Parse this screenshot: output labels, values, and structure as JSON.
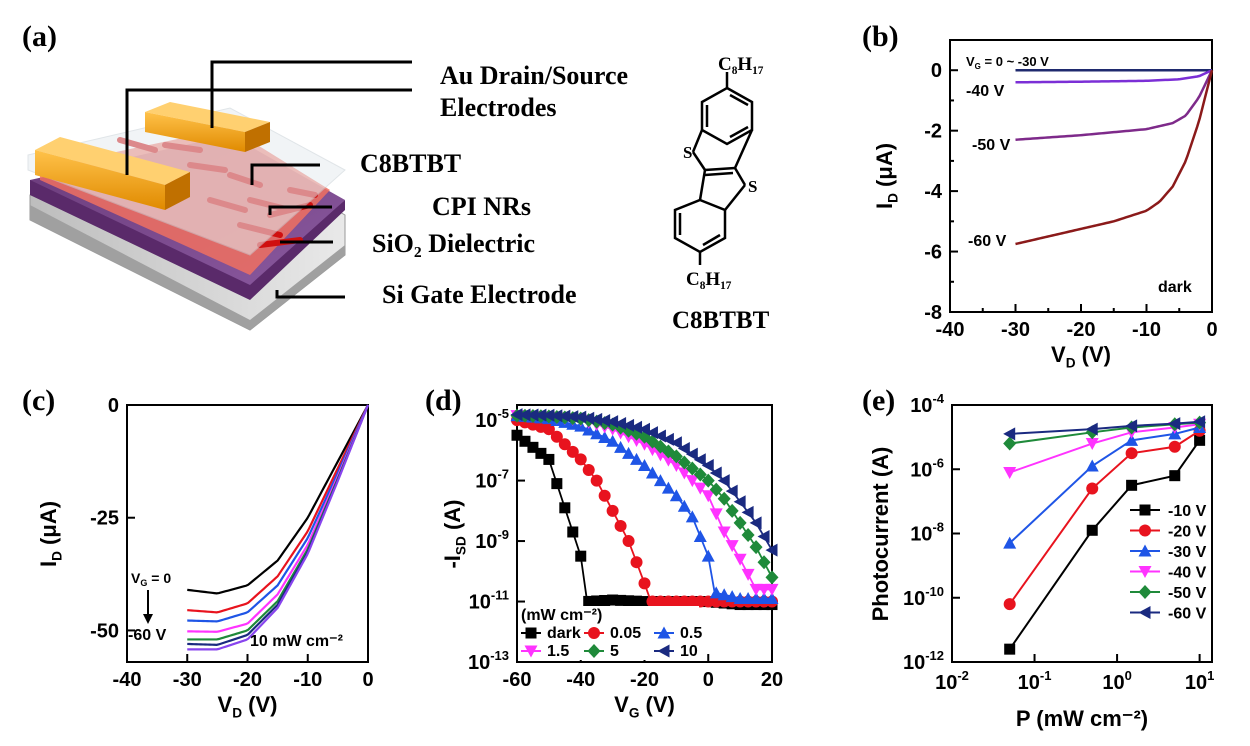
{
  "panels": {
    "a": {
      "letter": "(a)",
      "labels": [
        "Au Drain/Source",
        "Electrodes",
        "C8BTBT",
        "CPI NRs",
        "SiO₂ Dielectric",
        "Si Gate Electrode"
      ],
      "molecule": {
        "name": "C8BTBT",
        "top_sub": "C₈H₁₇",
        "bottom_sub": "C₈H₁₇",
        "s1": "S",
        "s2": "S"
      }
    },
    "b": {
      "letter": "(b)"
    },
    "c": {
      "letter": "(c)"
    },
    "d": {
      "letter": "(d)"
    },
    "e": {
      "letter": "(e)"
    }
  },
  "chart_data": [
    {
      "id": "b",
      "type": "line",
      "xlabel": "V_D (V)",
      "ylabel": "I_D (μA)",
      "xlim": [
        -40,
        0
      ],
      "ylim": [
        -8,
        1
      ],
      "xticks": [
        -40,
        -30,
        -20,
        -10,
        0
      ],
      "yticks": [
        0,
        -2,
        -4,
        -6,
        -8
      ],
      "annotations": [
        "V_G = 0 ~ -30 V",
        "-40 V",
        "-50 V",
        "-60 V",
        "dark"
      ],
      "series": [
        {
          "name": "0 ~ -30 V",
          "color": "#1f2a6e",
          "x": [
            -30,
            -20,
            -10,
            -5,
            0
          ],
          "y": [
            0,
            0,
            0,
            0,
            0
          ]
        },
        {
          "name": "-40 V",
          "color": "#7b2fd6",
          "x": [
            -30,
            -20,
            -10,
            -5,
            -2,
            0
          ],
          "y": [
            -0.4,
            -0.38,
            -0.35,
            -0.3,
            -0.2,
            0
          ]
        },
        {
          "name": "-50 V",
          "color": "#7e2a8a",
          "x": [
            -30,
            -20,
            -10,
            -6,
            -4,
            -2,
            0
          ],
          "y": [
            -2.3,
            -2.15,
            -1.95,
            -1.75,
            -1.5,
            -0.9,
            0
          ]
        },
        {
          "name": "-60 V",
          "color": "#8b1a1a",
          "x": [
            -30,
            -25,
            -20,
            -15,
            -10,
            -8,
            -6,
            -4,
            -2,
            0
          ],
          "y": [
            -5.75,
            -5.5,
            -5.25,
            -5.0,
            -4.65,
            -4.35,
            -3.85,
            -3.0,
            -1.7,
            0
          ]
        }
      ]
    },
    {
      "id": "c",
      "type": "line",
      "xlabel": "V_D (V)",
      "ylabel": "I_D (μA)",
      "xlim": [
        -40,
        0
      ],
      "ylim": [
        -57,
        0
      ],
      "xticks": [
        -40,
        -30,
        -20,
        -10,
        0
      ],
      "yticks": [
        0,
        -25,
        -50
      ],
      "annotations": [
        "V_G = 0",
        "-60 V",
        "10 mW cm⁻²"
      ],
      "series": [
        {
          "name": "0 V",
          "color": "#000000",
          "x": [
            -30,
            -25,
            -20,
            -15,
            -10,
            -5,
            0
          ],
          "y": [
            -41,
            -41.8,
            -40,
            -34.5,
            -25,
            -12.5,
            0
          ]
        },
        {
          "name": "-10 V",
          "color": "#e8131e",
          "x": [
            -30,
            -25,
            -20,
            -15,
            -10,
            -5,
            0
          ],
          "y": [
            -45.5,
            -46,
            -44,
            -38,
            -28,
            -14,
            0
          ]
        },
        {
          "name": "-20 V",
          "color": "#1f55e6",
          "x": [
            -30,
            -25,
            -20,
            -15,
            -10,
            -5,
            0
          ],
          "y": [
            -47.8,
            -48,
            -46,
            -40,
            -29.5,
            -15,
            0
          ]
        },
        {
          "name": "-30 V",
          "color": "#ff33ff",
          "x": [
            -30,
            -25,
            -20,
            -15,
            -10,
            -5,
            0
          ],
          "y": [
            -50.2,
            -50.3,
            -48.5,
            -42,
            -31,
            -15.8,
            0
          ]
        },
        {
          "name": "-40 V",
          "color": "#1f8a3a",
          "x": [
            -30,
            -25,
            -20,
            -15,
            -10,
            -5,
            0
          ],
          "y": [
            -52,
            -52,
            -50,
            -43.5,
            -32,
            -16.3,
            0
          ]
        },
        {
          "name": "-50 V",
          "color": "#1a2a80",
          "x": [
            -30,
            -25,
            -20,
            -15,
            -10,
            -5,
            0
          ],
          "y": [
            -53,
            -53.2,
            -51,
            -44.3,
            -32.6,
            -16.6,
            0
          ]
        },
        {
          "name": "-60 V",
          "color": "#8844ee",
          "x": [
            -30,
            -25,
            -20,
            -15,
            -10,
            -5,
            0
          ],
          "y": [
            -54.2,
            -54.2,
            -52,
            -45,
            -33,
            -16.8,
            0
          ]
        }
      ]
    },
    {
      "id": "d",
      "type": "line",
      "xlabel": "V_G (V)",
      "ylabel": "-I_SD (A)",
      "xlim": [
        -60,
        20
      ],
      "ylim_log10": [
        -13,
        -4.5
      ],
      "xticks": [
        -60,
        -40,
        -20,
        0,
        20
      ],
      "yticks_log10": [
        -5,
        -7,
        -9,
        -11,
        -13
      ],
      "legend_title": "(mW cm⁻²)",
      "legend_placement": "bottom-left",
      "series": [
        {
          "name": "dark",
          "color": "#000000",
          "marker": "square",
          "x": [
            -60,
            -50,
            -40,
            -38,
            -30,
            -20,
            -10,
            0,
            10,
            20
          ],
          "log10y": [
            -5.5,
            -6.3,
            -9.5,
            -11.0,
            -10.95,
            -11.0,
            -11.0,
            -11.0,
            -11.1,
            -11.1
          ]
        },
        {
          "name": "0.05",
          "color": "#e8131e",
          "marker": "circle",
          "x": [
            -60,
            -50,
            -40,
            -35,
            -30,
            -25,
            -20,
            -18,
            -10,
            0,
            10,
            20
          ],
          "log10y": [
            -5.0,
            -5.3,
            -6.3,
            -7.0,
            -8.0,
            -9.0,
            -10.4,
            -11.0,
            -11.0,
            -11.0,
            -11.0,
            -11.0
          ]
        },
        {
          "name": "0.5",
          "color": "#1f55e6",
          "marker": "triangle-up",
          "x": [
            -60,
            -50,
            -40,
            -30,
            -20,
            -10,
            -5,
            0,
            2,
            10,
            20
          ],
          "log10y": [
            -4.85,
            -4.95,
            -5.2,
            -5.7,
            -6.5,
            -7.5,
            -8.2,
            -9.5,
            -10.7,
            -10.9,
            -10.9
          ]
        },
        {
          "name": "1.5",
          "color": "#ff33ff",
          "marker": "triangle-down",
          "x": [
            -60,
            -50,
            -40,
            -30,
            -20,
            -10,
            0,
            5,
            10,
            15,
            20
          ],
          "log10y": [
            -4.85,
            -4.9,
            -5.0,
            -5.3,
            -5.8,
            -6.5,
            -7.5,
            -8.7,
            -9.6,
            -10.6,
            -10.6
          ]
        },
        {
          "name": "5",
          "color": "#1f8a3a",
          "marker": "diamond",
          "x": [
            -60,
            -50,
            -40,
            -30,
            -20,
            -10,
            0,
            5,
            10,
            15,
            20
          ],
          "log10y": [
            -4.85,
            -4.88,
            -4.95,
            -5.15,
            -5.55,
            -6.2,
            -7.0,
            -7.6,
            -8.4,
            -9.2,
            -10.2
          ]
        },
        {
          "name": "10",
          "color": "#1a2a80",
          "marker": "triangle-left",
          "x": [
            -60,
            -50,
            -40,
            -30,
            -20,
            -10,
            0,
            5,
            10,
            15,
            20
          ],
          "log10y": [
            -4.82,
            -4.84,
            -4.9,
            -5.05,
            -5.3,
            -5.75,
            -6.5,
            -7.0,
            -7.7,
            -8.4,
            -9.3
          ]
        }
      ]
    },
    {
      "id": "e",
      "type": "line",
      "xlabel": "P (mW cm⁻²)",
      "ylabel": "Photocurrent (A)",
      "xlim_log10": [
        -2,
        1.15
      ],
      "ylim_log10": [
        -12,
        -4
      ],
      "xticks_log10": [
        -2,
        -1,
        0,
        1
      ],
      "yticks_log10": [
        -4,
        -6,
        -8,
        -10,
        -12
      ],
      "legend_placement": "bottom-right",
      "series": [
        {
          "name": "-10 V",
          "color": "#000000",
          "marker": "square",
          "P": [
            0.05,
            0.5,
            1.5,
            5,
            10
          ],
          "log10y": [
            -11.6,
            -7.9,
            -6.5,
            -6.2,
            -5.1
          ]
        },
        {
          "name": "-20 V",
          "color": "#e8131e",
          "marker": "circle",
          "P": [
            0.05,
            0.5,
            1.5,
            5,
            10
          ],
          "log10y": [
            -10.2,
            -6.6,
            -5.5,
            -5.3,
            -4.8
          ]
        },
        {
          "name": "-30 V",
          "color": "#1f55e6",
          "marker": "triangle-up",
          "P": [
            0.05,
            0.5,
            1.5,
            5,
            10
          ],
          "log10y": [
            -8.3,
            -5.9,
            -5.1,
            -4.9,
            -4.7
          ]
        },
        {
          "name": "-40 V",
          "color": "#ff33ff",
          "marker": "triangle-down",
          "P": [
            0.05,
            0.5,
            1.5,
            5,
            10
          ],
          "log10y": [
            -6.1,
            -5.2,
            -4.85,
            -4.7,
            -4.6
          ]
        },
        {
          "name": "-50 V",
          "color": "#1f8a3a",
          "marker": "diamond",
          "P": [
            0.05,
            0.5,
            1.5,
            5,
            10
          ],
          "log10y": [
            -5.2,
            -4.85,
            -4.7,
            -4.6,
            -4.55
          ]
        },
        {
          "name": "-60 V",
          "color": "#1a2a80",
          "marker": "triangle-left",
          "P": [
            0.05,
            0.5,
            1.5,
            5,
            10
          ],
          "log10y": [
            -4.9,
            -4.75,
            -4.65,
            -4.58,
            -4.52
          ]
        }
      ]
    }
  ]
}
